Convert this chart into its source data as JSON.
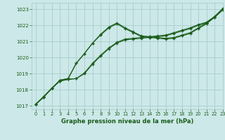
{
  "bg_color": "#cce8e8",
  "grid_color": "#aacccc",
  "line_color": "#1a5c1a",
  "text_color": "#1a5c1a",
  "xlabel": "Graphe pression niveau de la mer (hPa)",
  "ylim": [
    1016.8,
    1023.4
  ],
  "xlim": [
    -0.5,
    23
  ],
  "yticks": [
    1017,
    1018,
    1019,
    1020,
    1021,
    1022,
    1023
  ],
  "xticks": [
    0,
    1,
    2,
    3,
    4,
    5,
    6,
    7,
    8,
    9,
    10,
    11,
    12,
    13,
    14,
    15,
    16,
    17,
    18,
    19,
    20,
    21,
    22,
    23
  ],
  "series": [
    {
      "x": [
        0,
        1,
        2,
        3,
        4,
        5,
        6,
        7,
        8,
        9,
        10,
        11,
        12,
        13,
        14,
        15,
        16,
        17,
        18,
        19,
        20,
        21,
        22,
        23
      ],
      "y": [
        1017.1,
        1017.55,
        1018.1,
        1018.55,
        1018.65,
        1018.7,
        1019.0,
        1019.6,
        1020.1,
        1020.55,
        1020.9,
        1021.1,
        1021.15,
        1021.2,
        1021.25,
        1021.3,
        1021.35,
        1021.5,
        1021.65,
        1021.8,
        1022.0,
        1022.15,
        1022.5,
        1022.95
      ]
    },
    {
      "x": [
        0,
        1,
        2,
        3,
        4,
        5,
        6,
        7,
        8,
        9,
        10,
        11,
        12,
        13,
        14,
        15,
        16,
        17,
        18,
        19,
        20,
        21,
        22,
        23
      ],
      "y": [
        1017.1,
        1017.55,
        1018.1,
        1018.55,
        1018.65,
        1018.7,
        1019.05,
        1019.65,
        1020.15,
        1020.6,
        1020.95,
        1021.15,
        1021.2,
        1021.25,
        1021.3,
        1021.35,
        1021.4,
        1021.55,
        1021.7,
        1021.85,
        1022.05,
        1022.2,
        1022.55,
        1023.0
      ]
    },
    {
      "x": [
        0,
        1,
        2,
        3,
        4,
        5,
        6,
        7,
        8,
        9,
        10,
        11,
        12,
        13,
        14,
        15,
        16,
        17,
        18,
        19,
        20,
        21,
        22,
        23
      ],
      "y": [
        1017.1,
        1017.55,
        1018.1,
        1018.6,
        1018.7,
        1019.65,
        1020.25,
        1020.9,
        1021.4,
        1021.85,
        1022.1,
        1021.8,
        1021.55,
        1021.3,
        1021.25,
        1021.2,
        1021.15,
        1021.2,
        1021.35,
        1021.5,
        1021.8,
        1022.1,
        1022.5,
        1023.0
      ]
    },
    {
      "x": [
        0,
        1,
        2,
        3,
        4,
        5,
        6,
        7,
        8,
        9,
        10,
        11,
        12,
        13,
        14,
        15,
        16,
        17,
        18,
        19,
        20,
        21,
        22,
        23
      ],
      "y": [
        1017.1,
        1017.6,
        1018.1,
        1018.6,
        1018.7,
        1019.65,
        1020.25,
        1020.9,
        1021.45,
        1021.9,
        1022.15,
        1021.85,
        1021.6,
        1021.35,
        1021.3,
        1021.25,
        1021.2,
        1021.25,
        1021.4,
        1021.55,
        1021.85,
        1022.15,
        1022.55,
        1023.05
      ]
    }
  ],
  "figsize": [
    3.2,
    2.0
  ],
  "dpi": 100
}
